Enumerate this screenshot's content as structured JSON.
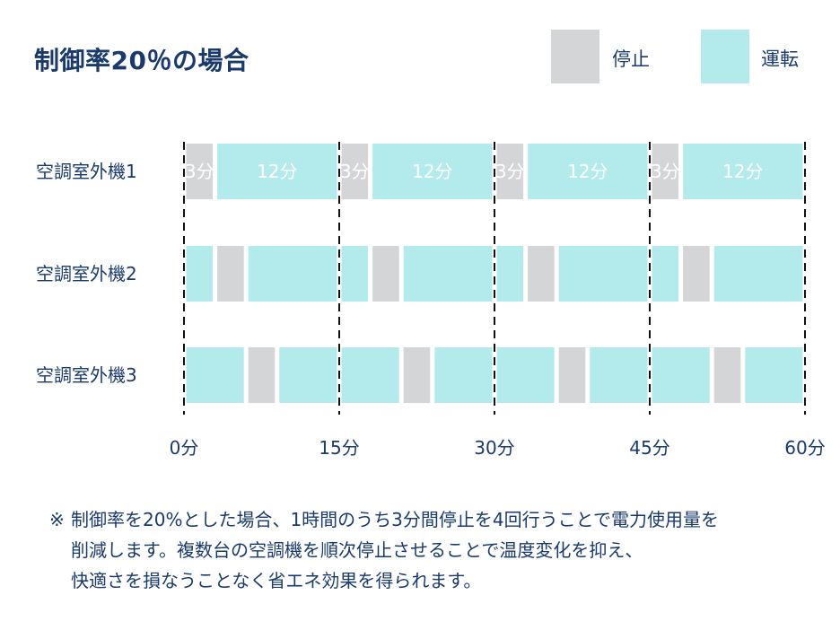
{
  "title": "制御率20％の場合",
  "legend": [
    {
      "label": "停止",
      "color": "#d4d5d7"
    },
    {
      "label": "運転",
      "color": "#b3ebed"
    }
  ],
  "chart_data": {
    "type": "bar",
    "orientation": "horizontal-timeline",
    "x_unit": "分",
    "xlim": [
      0,
      60
    ],
    "x_ticks": [
      0,
      15,
      30,
      45,
      60
    ],
    "x_tick_labels": [
      "0分",
      "15分",
      "30分",
      "45分",
      "60分"
    ],
    "grid": "dashed vertical lines at ticks",
    "legend_placement": "top-right",
    "colors": {
      "stop": "#d4d5d7",
      "run": "#b3ebed"
    },
    "series": [
      {
        "name": "空調室外機1",
        "segments": [
          {
            "start": 0,
            "end": 3,
            "state": "stop",
            "label": "3分"
          },
          {
            "start": 3,
            "end": 15,
            "state": "run",
            "label": "12分"
          },
          {
            "start": 15,
            "end": 18,
            "state": "stop",
            "label": "3分"
          },
          {
            "start": 18,
            "end": 30,
            "state": "run",
            "label": "12分"
          },
          {
            "start": 30,
            "end": 33,
            "state": "stop",
            "label": "3分"
          },
          {
            "start": 33,
            "end": 45,
            "state": "run",
            "label": "12分"
          },
          {
            "start": 45,
            "end": 48,
            "state": "stop",
            "label": "3分"
          },
          {
            "start": 48,
            "end": 60,
            "state": "run",
            "label": "12分"
          }
        ]
      },
      {
        "name": "空調室外機2",
        "segments": [
          {
            "start": 0,
            "end": 3,
            "state": "run"
          },
          {
            "start": 3,
            "end": 6,
            "state": "stop"
          },
          {
            "start": 6,
            "end": 15,
            "state": "run"
          },
          {
            "start": 15,
            "end": 18,
            "state": "run"
          },
          {
            "start": 18,
            "end": 21,
            "state": "stop"
          },
          {
            "start": 21,
            "end": 30,
            "state": "run"
          },
          {
            "start": 30,
            "end": 33,
            "state": "run"
          },
          {
            "start": 33,
            "end": 36,
            "state": "stop"
          },
          {
            "start": 36,
            "end": 45,
            "state": "run"
          },
          {
            "start": 45,
            "end": 48,
            "state": "run"
          },
          {
            "start": 48,
            "end": 51,
            "state": "stop"
          },
          {
            "start": 51,
            "end": 60,
            "state": "run"
          }
        ]
      },
      {
        "name": "空調室外機3",
        "segments": [
          {
            "start": 0,
            "end": 6,
            "state": "run"
          },
          {
            "start": 6,
            "end": 9,
            "state": "stop"
          },
          {
            "start": 9,
            "end": 15,
            "state": "run"
          },
          {
            "start": 15,
            "end": 21,
            "state": "run"
          },
          {
            "start": 21,
            "end": 24,
            "state": "stop"
          },
          {
            "start": 24,
            "end": 30,
            "state": "run"
          },
          {
            "start": 30,
            "end": 36,
            "state": "run"
          },
          {
            "start": 36,
            "end": 39,
            "state": "stop"
          },
          {
            "start": 39,
            "end": 45,
            "state": "run"
          },
          {
            "start": 45,
            "end": 51,
            "state": "run"
          },
          {
            "start": 51,
            "end": 54,
            "state": "stop"
          },
          {
            "start": 54,
            "end": 60,
            "state": "run"
          }
        ]
      }
    ]
  },
  "note": {
    "mark": "※",
    "lines": [
      "制御率を20%とした場合、1時間のうち3分間停止を4回行うことで電力使用量を",
      "削減します。複数台の空調機を順次停止させることで温度変化を抑え、",
      "快適さを損なうことなく省エネ効果を得られます。"
    ]
  }
}
